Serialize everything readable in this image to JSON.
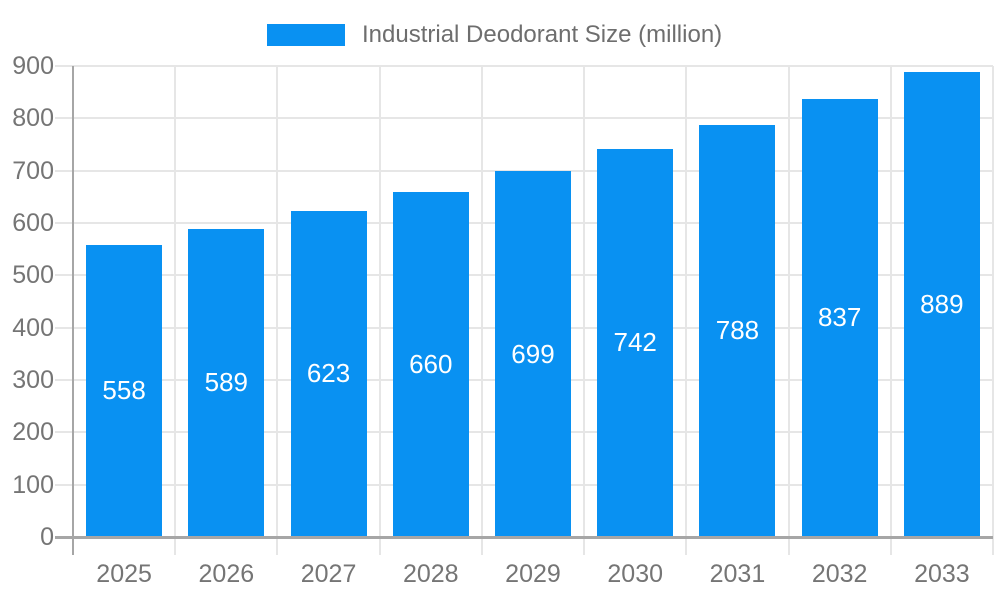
{
  "chart_data": {
    "type": "bar",
    "title": "Industrial Deodorant Size (million)",
    "legend_position": "top",
    "legend": [
      {
        "label": "Industrial Deodorant Size (million)",
        "color": "#0991f2"
      }
    ],
    "categories": [
      "2025",
      "2026",
      "2027",
      "2028",
      "2029",
      "2030",
      "2031",
      "2032",
      "2033"
    ],
    "series": [
      {
        "name": "Industrial Deodorant Size (million)",
        "values": [
          558,
          589,
          623,
          660,
          699,
          742,
          788,
          837,
          889
        ]
      }
    ],
    "xlabel": "",
    "ylabel": "",
    "ylim": [
      0,
      900
    ],
    "yticks": [
      0,
      100,
      200,
      300,
      400,
      500,
      600,
      700,
      800,
      900
    ],
    "grid": true,
    "colors": {
      "bar": "#0991f2",
      "bar_label_text": "#ffffff",
      "axis_label_text": "#757575",
      "title_text": "#6e6e6e",
      "gridline": "#e6e6e6",
      "axis_line": "#a6a6a6"
    }
  }
}
